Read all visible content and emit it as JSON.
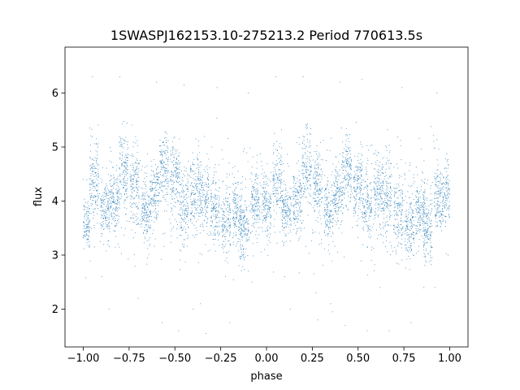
{
  "chart_data": {
    "type": "scatter",
    "title": "1SWASPJ162153.10-275213.2 Period 770613.5s",
    "xlabel": "phase",
    "ylabel": "flux",
    "xlim": [
      -1.1,
      1.1
    ],
    "ylim": [
      1.3,
      6.85
    ],
    "xticks": [
      -1.0,
      -0.75,
      -0.5,
      -0.25,
      0.0,
      0.25,
      0.5,
      0.75,
      1.0
    ],
    "xtick_labels": [
      "−1.00",
      "−0.75",
      "−0.50",
      "−0.25",
      "0.00",
      "0.25",
      "0.50",
      "0.75",
      "1.00"
    ],
    "yticks": [
      2,
      3,
      4,
      5,
      6
    ],
    "ytick_labels": [
      "2",
      "3",
      "4",
      "5",
      "6"
    ],
    "grid": false,
    "legend": "none",
    "marker_color": "#1f77b4",
    "series": [
      {
        "x_range": [
          -1.0,
          1.0
        ],
        "phase_clusters": [
          {
            "phase": -0.99,
            "center": 3.6,
            "spread": 0.2
          },
          {
            "phase": -0.94,
            "center": 4.4,
            "spread": 0.35
          },
          {
            "phase": -0.88,
            "center": 3.8,
            "spread": 0.25
          },
          {
            "phase": -0.83,
            "center": 4.0,
            "spread": 0.3
          },
          {
            "phase": -0.78,
            "center": 4.6,
            "spread": 0.35
          },
          {
            "phase": -0.72,
            "center": 4.3,
            "spread": 0.35
          },
          {
            "phase": -0.66,
            "center": 3.8,
            "spread": 0.3
          },
          {
            "phase": -0.61,
            "center": 4.1,
            "spread": 0.3
          },
          {
            "phase": -0.56,
            "center": 4.6,
            "spread": 0.3
          },
          {
            "phase": -0.5,
            "center": 4.4,
            "spread": 0.35
          },
          {
            "phase": -0.45,
            "center": 3.9,
            "spread": 0.35
          },
          {
            "phase": -0.39,
            "center": 4.2,
            "spread": 0.35
          },
          {
            "phase": -0.34,
            "center": 4.0,
            "spread": 0.4
          },
          {
            "phase": -0.28,
            "center": 3.8,
            "spread": 0.35
          },
          {
            "phase": -0.22,
            "center": 3.5,
            "spread": 0.3
          },
          {
            "phase": -0.16,
            "center": 3.8,
            "spread": 0.3
          },
          {
            "phase": -0.12,
            "center": 3.5,
            "spread": 0.3
          },
          {
            "phase": -0.06,
            "center": 4.0,
            "spread": 0.3
          },
          {
            "phase": 0.0,
            "center": 3.9,
            "spread": 0.3
          },
          {
            "phase": 0.06,
            "center": 4.4,
            "spread": 0.35
          },
          {
            "phase": 0.11,
            "center": 3.8,
            "spread": 0.25
          },
          {
            "phase": 0.17,
            "center": 4.0,
            "spread": 0.3
          },
          {
            "phase": 0.22,
            "center": 4.6,
            "spread": 0.35
          },
          {
            "phase": 0.28,
            "center": 4.3,
            "spread": 0.35
          },
          {
            "phase": 0.34,
            "center": 3.8,
            "spread": 0.3
          },
          {
            "phase": 0.39,
            "center": 4.1,
            "spread": 0.3
          },
          {
            "phase": 0.44,
            "center": 4.6,
            "spread": 0.3
          },
          {
            "phase": 0.5,
            "center": 4.3,
            "spread": 0.35
          },
          {
            "phase": 0.55,
            "center": 3.9,
            "spread": 0.35
          },
          {
            "phase": 0.61,
            "center": 4.2,
            "spread": 0.35
          },
          {
            "phase": 0.66,
            "center": 4.0,
            "spread": 0.4
          },
          {
            "phase": 0.72,
            "center": 3.8,
            "spread": 0.35
          },
          {
            "phase": 0.78,
            "center": 3.5,
            "spread": 0.3
          },
          {
            "phase": 0.84,
            "center": 3.8,
            "spread": 0.3
          },
          {
            "phase": 0.88,
            "center": 3.5,
            "spread": 0.3
          },
          {
            "phase": 0.94,
            "center": 4.0,
            "spread": 0.3
          },
          {
            "phase": 0.99,
            "center": 4.2,
            "spread": 0.3
          }
        ],
        "outliers": [
          [
            -0.95,
            6.3
          ],
          [
            -0.9,
            2.6
          ],
          [
            -0.86,
            2.0
          ],
          [
            -0.8,
            6.3
          ],
          [
            -0.7,
            2.2
          ],
          [
            -0.6,
            6.2
          ],
          [
            -0.57,
            1.75
          ],
          [
            -0.45,
            6.15
          ],
          [
            -0.48,
            1.6
          ],
          [
            -0.36,
            2.1
          ],
          [
            -0.33,
            1.55
          ],
          [
            -0.27,
            6.1
          ],
          [
            -0.2,
            1.75
          ],
          [
            -0.1,
            6.0
          ],
          [
            -0.08,
            2.5
          ],
          [
            0.05,
            6.3
          ],
          [
            0.1,
            2.6
          ],
          [
            0.13,
            2.0
          ],
          [
            0.2,
            6.3
          ],
          [
            0.27,
            2.3
          ],
          [
            0.36,
            1.95
          ],
          [
            0.4,
            6.2
          ],
          [
            0.43,
            1.7
          ],
          [
            0.52,
            6.25
          ],
          [
            0.55,
            1.6
          ],
          [
            0.62,
            2.4
          ],
          [
            0.67,
            1.6
          ],
          [
            0.74,
            6.1
          ],
          [
            0.79,
            1.75
          ],
          [
            0.93,
            6.0
          ],
          [
            0.92,
            2.4
          ],
          [
            -0.4,
            2.0
          ],
          [
            0.35,
            2.1
          ],
          [
            0.28,
            1.8
          ]
        ]
      }
    ]
  }
}
